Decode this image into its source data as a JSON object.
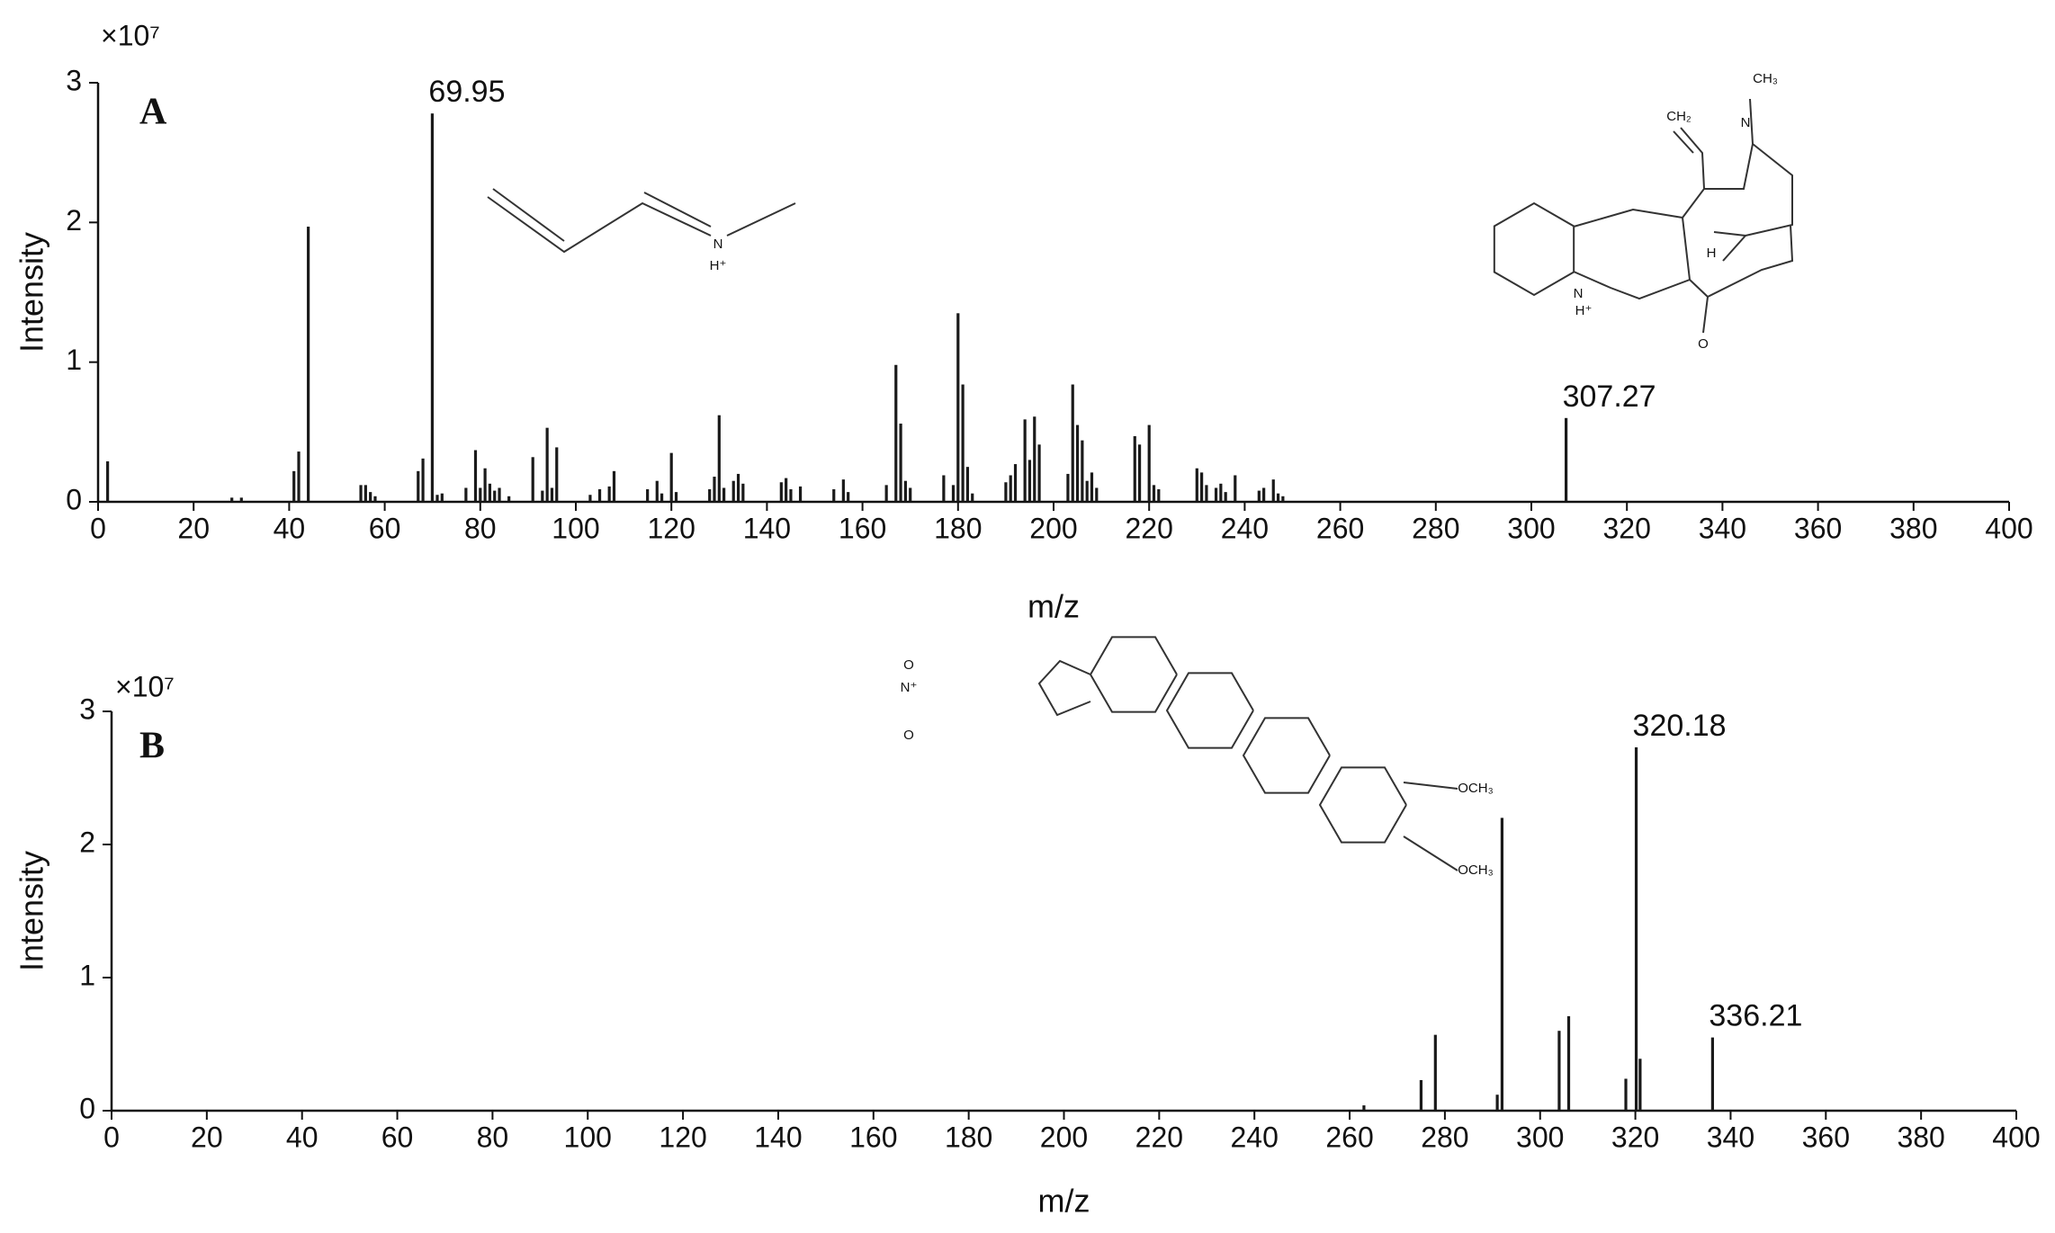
{
  "chart_data": [
    {
      "type": "bar",
      "panel_label": "A",
      "xlabel": "m/z",
      "ylabel": "Intensity",
      "y_multiplier": "×10⁷",
      "color": "#1a1a1a",
      "xlim": [
        0,
        400
      ],
      "ylim": [
        0,
        3
      ],
      "xticks": [
        0,
        20,
        40,
        60,
        80,
        100,
        120,
        140,
        160,
        180,
        200,
        220,
        240,
        260,
        280,
        300,
        320,
        340,
        360,
        380,
        400
      ],
      "yticks": [
        0,
        1,
        2,
        3
      ],
      "x": [
        2,
        28,
        30,
        41,
        42,
        44,
        55,
        56,
        57,
        58,
        67,
        68,
        69.95,
        71,
        72,
        77,
        79,
        80,
        81,
        82,
        83,
        84,
        86,
        91,
        93,
        94,
        95,
        96,
        103,
        105,
        107,
        108,
        115,
        117,
        118,
        120,
        121,
        128,
        129,
        130,
        131,
        133,
        134,
        135,
        143,
        144,
        145,
        147,
        154,
        156,
        157,
        165,
        167,
        168,
        169,
        170,
        177,
        179,
        180,
        181,
        182,
        183,
        190,
        191,
        192,
        194,
        195,
        196,
        197,
        203,
        204,
        205,
        206,
        207,
        208,
        209,
        217,
        218,
        220,
        221,
        222,
        230,
        231,
        232,
        234,
        235,
        236,
        238,
        243,
        244,
        246,
        247,
        248,
        307.27
      ],
      "values": [
        0.29,
        0.03,
        0.03,
        0.22,
        0.36,
        1.97,
        0.12,
        0.12,
        0.07,
        0.04,
        0.22,
        0.31,
        2.78,
        0.05,
        0.06,
        0.1,
        0.37,
        0.1,
        0.24,
        0.13,
        0.08,
        0.1,
        0.04,
        0.32,
        0.08,
        0.53,
        0.1,
        0.39,
        0.05,
        0.09,
        0.11,
        0.22,
        0.09,
        0.15,
        0.06,
        0.35,
        0.07,
        0.09,
        0.18,
        0.62,
        0.1,
        0.15,
        0.2,
        0.13,
        0.14,
        0.17,
        0.09,
        0.11,
        0.09,
        0.16,
        0.07,
        0.12,
        0.98,
        0.56,
        0.15,
        0.1,
        0.19,
        0.12,
        1.35,
        0.84,
        0.25,
        0.06,
        0.14,
        0.19,
        0.27,
        0.59,
        0.3,
        0.61,
        0.41,
        0.2,
        0.84,
        0.55,
        0.44,
        0.15,
        0.21,
        0.1,
        0.47,
        0.41,
        0.55,
        0.12,
        0.09,
        0.24,
        0.21,
        0.12,
        0.1,
        0.13,
        0.07,
        0.19,
        0.08,
        0.1,
        0.16,
        0.06,
        0.04,
        0.6
      ],
      "peak_labels": [
        {
          "x": 69.95,
          "label": "69.95"
        },
        {
          "x": 307.27,
          "label": "307.27"
        }
      ],
      "structure_labels": [
        "N",
        "H⁺",
        "CH₂",
        "N",
        "CH₃",
        "H",
        "N",
        "H⁺",
        "O"
      ]
    },
    {
      "type": "bar",
      "panel_label": "B",
      "xlabel": "m/z",
      "ylabel": "Intensity",
      "y_multiplier": "×10⁷",
      "color": "#1a1a1a",
      "xlim": [
        0,
        400
      ],
      "ylim": [
        0,
        3
      ],
      "xticks": [
        0,
        20,
        40,
        60,
        80,
        100,
        120,
        140,
        160,
        180,
        200,
        220,
        240,
        260,
        280,
        300,
        320,
        340,
        360,
        380,
        400
      ],
      "yticks": [
        0,
        1,
        2,
        3
      ],
      "x": [
        263,
        275,
        278,
        291,
        292,
        304,
        306,
        318,
        320.18,
        321,
        336.21
      ],
      "values": [
        0.04,
        0.23,
        0.57,
        0.12,
        2.2,
        0.6,
        0.71,
        0.24,
        2.73,
        0.39,
        0.55
      ],
      "peak_labels": [
        {
          "x": 320.18,
          "label": "320.18"
        },
        {
          "x": 336.21,
          "label": "336.21"
        }
      ],
      "structure_labels": [
        "O",
        "O",
        "N⁺",
        "OCH₃",
        "OCH₃"
      ]
    }
  ]
}
